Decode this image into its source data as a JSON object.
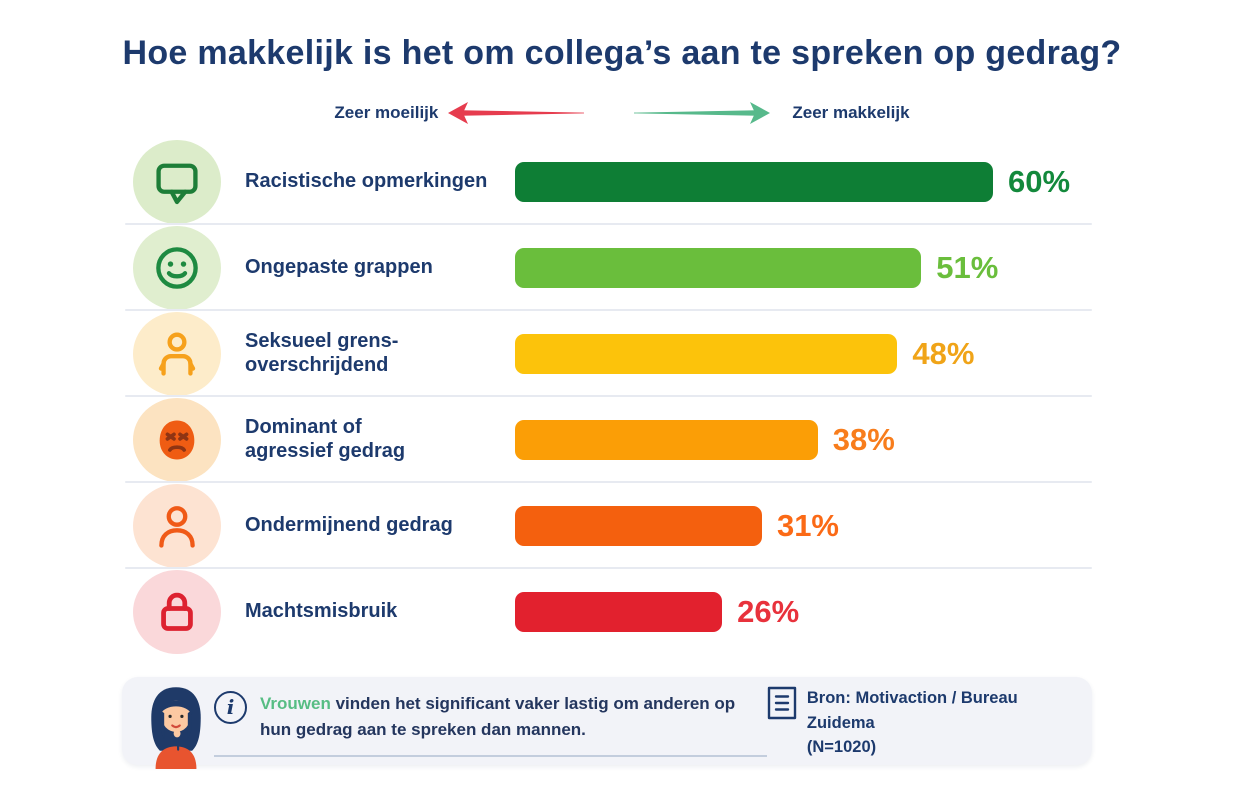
{
  "title": "Hoe makkelijk is het om collega’s aan te spreken op gedrag?",
  "legend": {
    "left_label": "Zeer moeilijk",
    "right_label": "Zeer makkelijk",
    "left_color": "#e63c4e",
    "right_color": "#57b98b"
  },
  "chart_data": {
    "type": "bar",
    "orientation": "horizontal",
    "title": "Hoe makkelijk is het om collega’s aan te spreken op gedrag?",
    "categories": [
      "Racistische opmerkingen",
      "Ongepaste grappen",
      "Seksueel grens-overschrijdend",
      "Dominant of agressief gedrag",
      "Ondermijnend gedrag",
      "Machtsmisbruik"
    ],
    "values": [
      60,
      51,
      48,
      38,
      31,
      26
    ],
    "unit": "%",
    "xlim": [
      0,
      60
    ],
    "grid": false,
    "legend_position": "top",
    "axis_note": "scale from Zeer moeilijk (left) to Zeer makkelijk (right)"
  },
  "rows": [
    {
      "icon": "speech-bubble-icon",
      "label": "Racistische opmerkingen",
      "value": 60,
      "value_label": "60%",
      "bar_color": "#0e7e35",
      "value_color": "#13893c",
      "icon_bg": "#dcecca",
      "icon_color": "#1e7e38"
    },
    {
      "icon": "smiley-face-icon",
      "label": "Ongepaste grappen",
      "value": 51,
      "value_label": "51%",
      "bar_color": "#6abe3c",
      "value_color": "#6abe3c",
      "icon_bg": "#e0eecf",
      "icon_color": "#1e8a41"
    },
    {
      "icon": "person-body-icon",
      "label": "Seksueel grens-\noverschrijdend",
      "value": 48,
      "value_label": "48%",
      "bar_color": "#fcc30b",
      "value_color": "#f0a418",
      "icon_bg": "#fdecca",
      "icon_color": "#f6a11c"
    },
    {
      "icon": "angry-face-icon",
      "label": "Dominant of\nagressief gedrag",
      "value": 38,
      "value_label": "38%",
      "bar_color": "#fb9e06",
      "value_color": "#f87d1c",
      "icon_bg": "#fce3c1",
      "icon_color": "#ef5c13",
      "icon_accent": "#8f3413"
    },
    {
      "icon": "user-icon",
      "label": "Ondermijnend gedrag",
      "value": 31,
      "value_label": "31%",
      "bar_color": "#f4600e",
      "value_color": "#fb6a16",
      "icon_bg": "#fde3d2",
      "icon_color": "#f05a17"
    },
    {
      "icon": "lock-icon",
      "label": "Machtsmisbruik",
      "value": 26,
      "value_label": "26%",
      "bar_color": "#e2212e",
      "value_color": "#e8323c",
      "icon_bg": "#fad8da",
      "icon_color": "#dd2230"
    }
  ],
  "footnote": {
    "highlight": "Vrouwen",
    "highlight_color": "#57bd84",
    "rest": " vinden het significant vaker lastig om anderen op hun gedrag aan te spreken dan mannen.",
    "source_line1": "Bron: Motivaction / Bureau Zuidema",
    "source_line2": "(N=1020)"
  }
}
